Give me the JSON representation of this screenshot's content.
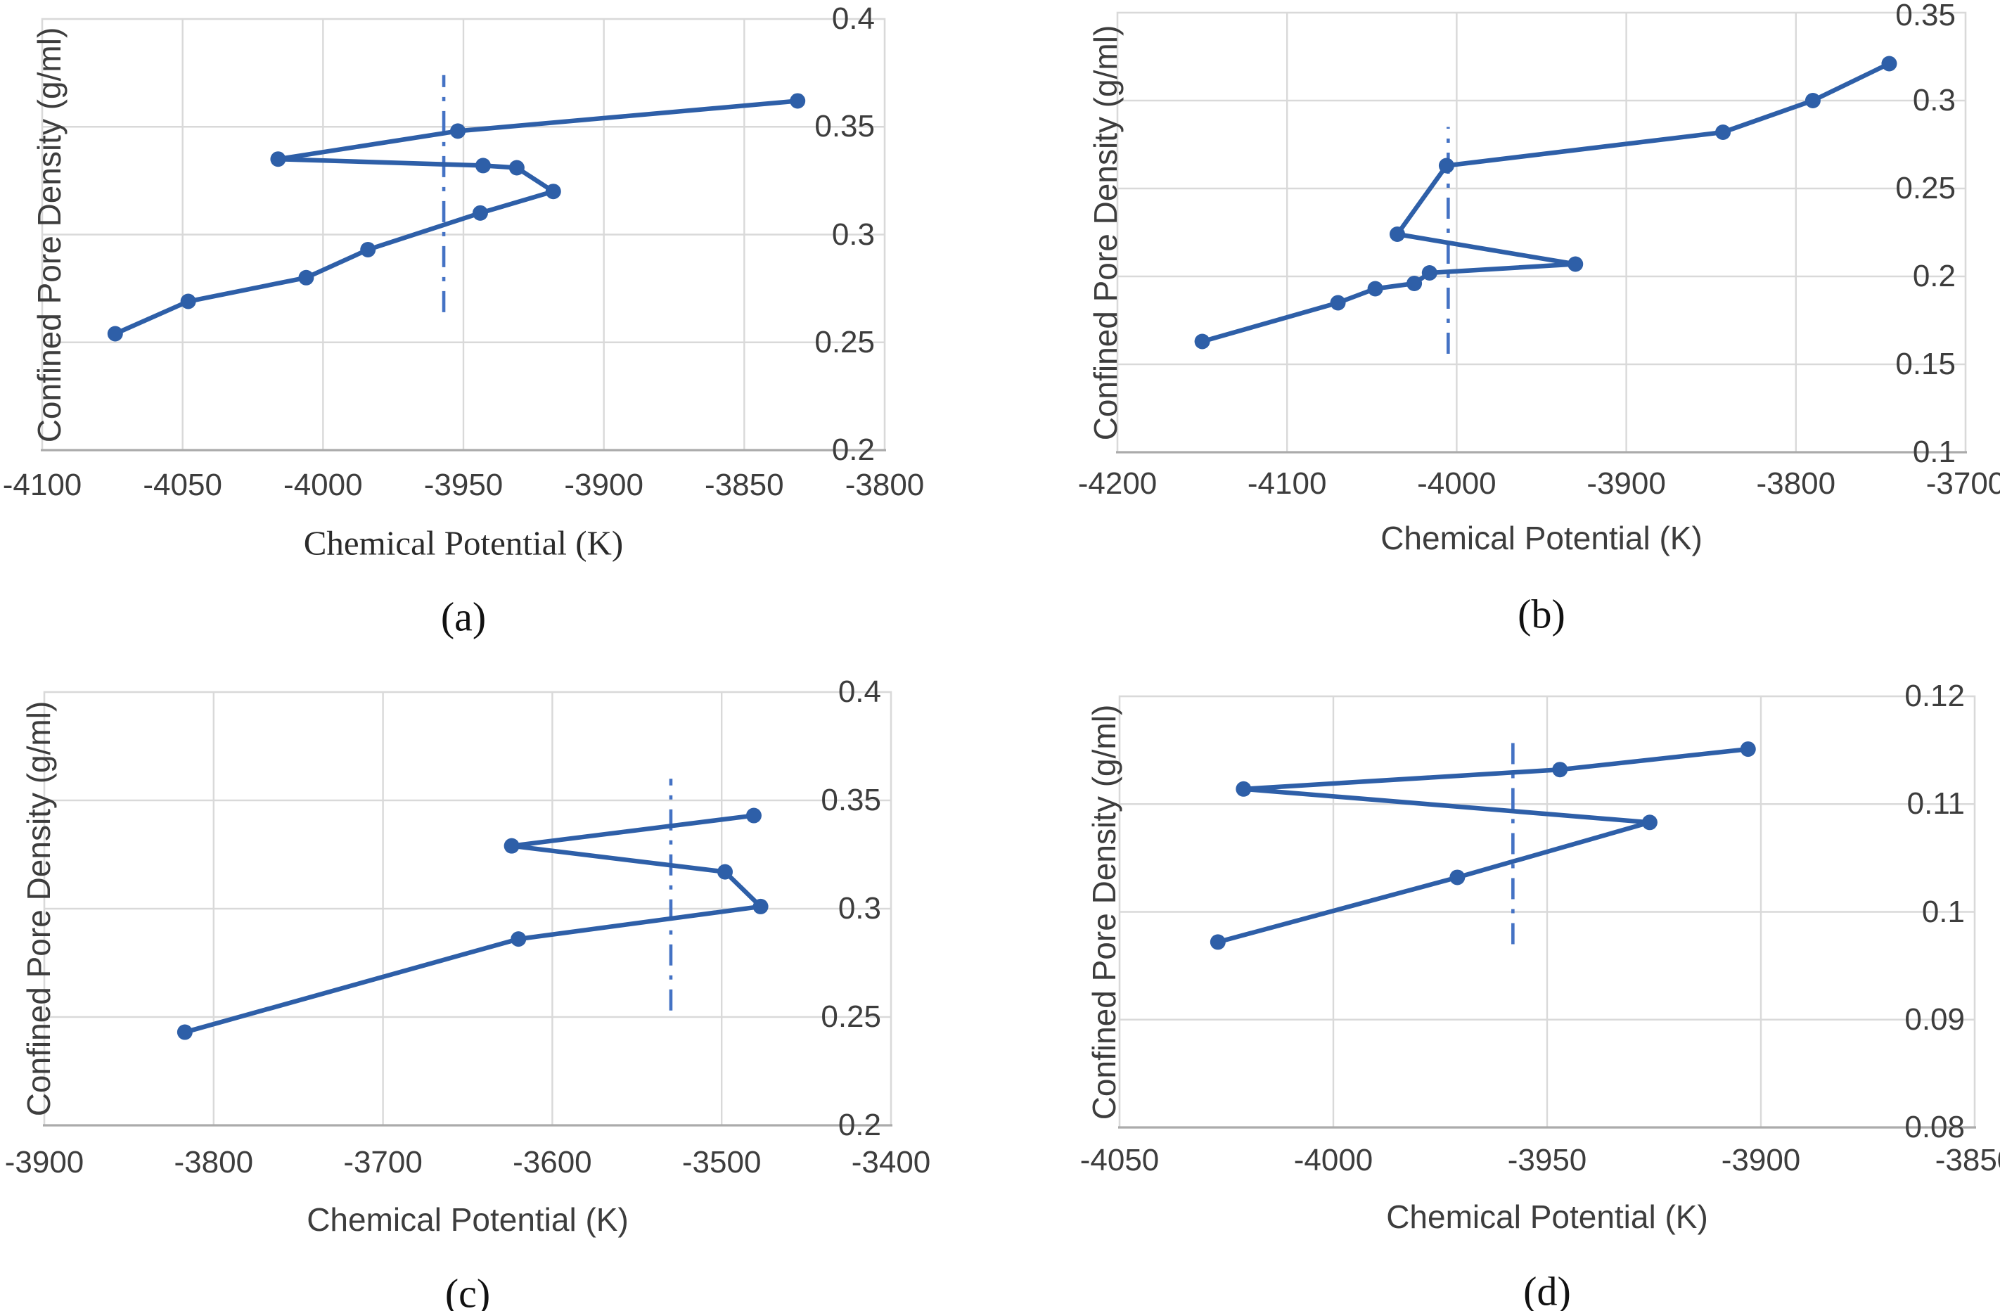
{
  "figure": {
    "colors": {
      "series_line": "#2e5fa8",
      "marker_fill": "#2e5fa8",
      "dash_line": "#4472c4",
      "gridline": "#d9d9d9",
      "axis_line": "#ababab",
      "tick_text": "#3d3d3d"
    }
  },
  "chart_data": [
    {
      "type": "line",
      "caption": "(a)",
      "xlabel": "Chemical Potential (K)",
      "ylabel": "Confined Pore Density (g/ml)",
      "xlim": [
        -4100,
        -3800
      ],
      "ylim": [
        0.2,
        0.4
      ],
      "grid": true,
      "legend": "none",
      "xticks": [
        -4100,
        -4050,
        -4000,
        -3950,
        -3900,
        -3850,
        -3800
      ],
      "xtick_labels": [
        "-4100",
        "-4050",
        "-4000",
        "-3950",
        "-3900",
        "-3850",
        "-3800"
      ],
      "yticks": [
        0.2,
        0.25,
        0.3,
        0.35,
        0.4
      ],
      "ytick_labels": [
        "0.2",
        "0.25",
        "0.3",
        "0.35",
        "0.4"
      ],
      "points": [
        [
          -4074,
          0.254
        ],
        [
          -4048,
          0.269
        ],
        [
          -4006,
          0.28
        ],
        [
          -3984,
          0.293
        ],
        [
          -3944,
          0.31
        ],
        [
          -3918,
          0.32
        ],
        [
          -3931,
          0.331
        ],
        [
          -3943,
          0.332
        ],
        [
          -4016,
          0.335
        ],
        [
          -3952,
          0.348
        ],
        [
          -3831,
          0.362
        ]
      ],
      "vline": {
        "x": -3957,
        "y_from": 0.264,
        "y_to": 0.374,
        "style": "dash-dot"
      }
    },
    {
      "type": "line",
      "caption": "(b)",
      "xlabel": "Chemical Potential (K)",
      "ylabel": "Confined Pore Density (g/ml)",
      "xlim": [
        -4200,
        -3700
      ],
      "ylim": [
        0.1,
        0.35
      ],
      "grid": true,
      "legend": "none",
      "xticks": [
        -4200,
        -4100,
        -4000,
        -3900,
        -3800,
        -3700
      ],
      "xtick_labels": [
        "-4200",
        "-4100",
        "-4000",
        "-3900",
        "-3800",
        "-3700"
      ],
      "yticks": [
        0.1,
        0.15,
        0.2,
        0.25,
        0.3,
        0.35
      ],
      "ytick_labels": [
        "0.1",
        "0.15",
        "0.2",
        "0.25",
        "0.3",
        "0.35"
      ],
      "points": [
        [
          -4150,
          0.163
        ],
        [
          -4070,
          0.185
        ],
        [
          -4048,
          0.193
        ],
        [
          -4025,
          0.196
        ],
        [
          -4016,
          0.202
        ],
        [
          -3930,
          0.207
        ],
        [
          -4035,
          0.224
        ],
        [
          -4006,
          0.263
        ],
        [
          -3843,
          0.282
        ],
        [
          -3790,
          0.3
        ],
        [
          -3745,
          0.321
        ]
      ],
      "vline": {
        "x": -4005,
        "y_from": 0.156,
        "y_to": 0.285,
        "style": "dash-dot"
      }
    },
    {
      "type": "line",
      "caption": "(c)",
      "xlabel": "Chemical Potential (K)",
      "ylabel": "Confined Pore Density (g/ml)",
      "xlim": [
        -3900,
        -3400
      ],
      "ylim": [
        0.2,
        0.4
      ],
      "grid": true,
      "legend": "none",
      "xticks": [
        -3900,
        -3800,
        -3700,
        -3600,
        -3500,
        -3400
      ],
      "xtick_labels": [
        "-3900",
        "-3800",
        "-3700",
        "-3600",
        "-3500",
        "-3400"
      ],
      "yticks": [
        0.2,
        0.25,
        0.3,
        0.35,
        0.4
      ],
      "ytick_labels": [
        "0.2",
        "0.25",
        "0.3",
        "0.35",
        "0.4"
      ],
      "points": [
        [
          -3817,
          0.243
        ],
        [
          -3620,
          0.286
        ],
        [
          -3477,
          0.301
        ],
        [
          -3498,
          0.317
        ],
        [
          -3624,
          0.329
        ],
        [
          -3481,
          0.343
        ]
      ],
      "vline": {
        "x": -3530,
        "y_from": 0.253,
        "y_to": 0.36,
        "style": "dash-dot"
      }
    },
    {
      "type": "line",
      "caption": "(d)",
      "xlabel": "Chemical Potential (K)",
      "ylabel": "Confined Pore Density (g/ml)",
      "xlim": [
        -4050,
        -3850
      ],
      "ylim": [
        0.08,
        0.12
      ],
      "grid": true,
      "legend": "none",
      "xticks": [
        -4050,
        -4000,
        -3950,
        -3900,
        -3850
      ],
      "xtick_labels": [
        "-4050",
        "-4000",
        "-3950",
        "-3900",
        "-3850"
      ],
      "yticks": [
        0.08,
        0.09,
        0.1,
        0.11,
        0.12
      ],
      "ytick_labels": [
        "0.08",
        "0.09",
        "0.1",
        "0.11",
        "0.12"
      ],
      "points": [
        [
          -4027,
          0.0972
        ],
        [
          -3971,
          0.1032
        ],
        [
          -3926,
          0.1083
        ],
        [
          -4021,
          0.1114
        ],
        [
          -3947,
          0.1132
        ],
        [
          -3903,
          0.1151
        ]
      ],
      "vline": {
        "x": -3958,
        "y_from": 0.097,
        "y_to": 0.116,
        "style": "dash-dot"
      }
    }
  ]
}
